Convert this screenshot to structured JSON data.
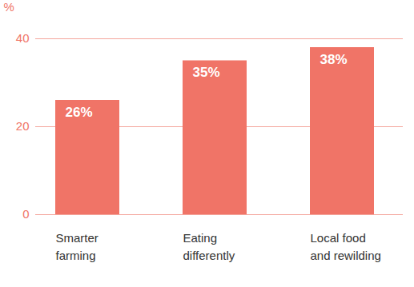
{
  "chart_data": {
    "type": "bar",
    "categories": [
      "Smarter\nfarming",
      "Eating\ndifferently",
      "Local food\nand rewilding"
    ],
    "values": [
      26,
      35,
      38
    ],
    "value_labels": [
      "26%",
      "35%",
      "38%"
    ],
    "data_labels": true,
    "color": "#f07467",
    "ylabel": "%",
    "ylim": [
      0,
      40
    ],
    "yticks": [
      0,
      20,
      40
    ],
    "grid": true
  }
}
